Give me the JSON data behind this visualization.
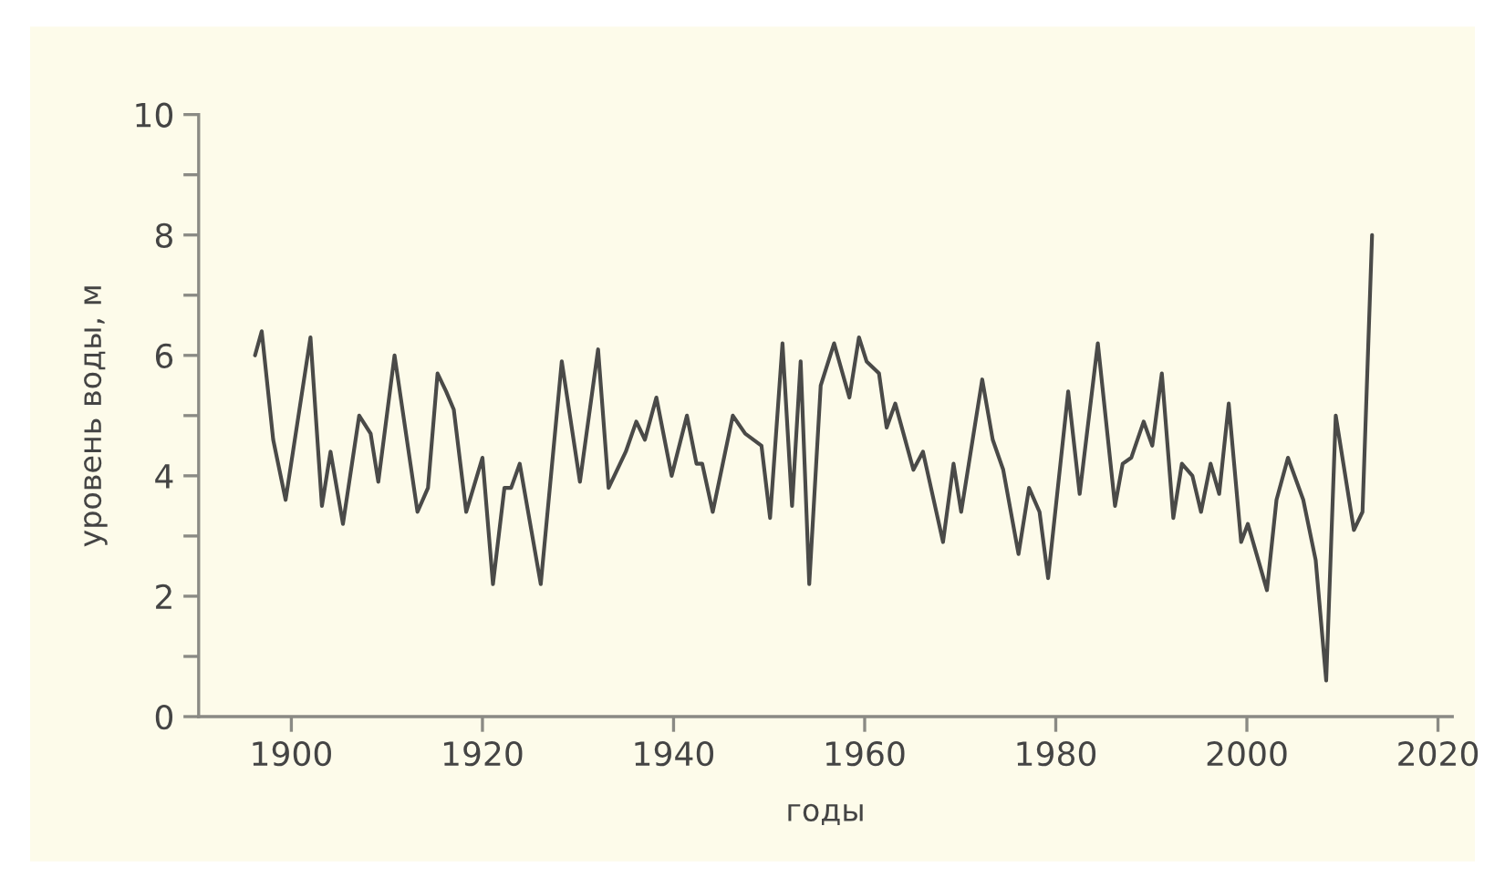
{
  "chart_data": {
    "type": "line",
    "xlabel": "годы",
    "ylabel": "уровень воды, м",
    "xlim": [
      1890.3,
      2021.5
    ],
    "xticks": [
      1900,
      1920,
      1940,
      1960,
      1980,
      2000,
      2020
    ],
    "ylim": [
      0,
      10
    ],
    "yticks": [
      0,
      {
        "value": 1,
        "label": null
      },
      2,
      {
        "value": 3,
        "label": null
      },
      4,
      {
        "value": 5,
        "label": null
      },
      6,
      {
        "value": 7,
        "label": null
      },
      8,
      {
        "value": 9,
        "label": null
      },
      10
    ],
    "grid": false,
    "legend": false,
    "marker": "none",
    "line_style": "solid",
    "series": [
      {
        "color": "#4a4a48",
        "x": [
          1896.2,
          1896.9,
          1898.1,
          1899.4,
          1902.0,
          1903.2,
          1904.1,
          1905.4,
          1907.1,
          1908.3,
          1909.1,
          1910.8,
          1913.2,
          1914.3,
          1915.3,
          1916.2,
          1917.0,
          1918.3,
          1920.0,
          1921.1,
          1922.3,
          1923.0,
          1923.9,
          1926.1,
          1928.3,
          1930.2,
          1932.1,
          1933.2,
          1935.0,
          1936.1,
          1937.0,
          1938.2,
          1939.8,
          1941.4,
          1942.4,
          1943.0,
          1944.1,
          1946.2,
          1947.5,
          1949.2,
          1950.1,
          1951.4,
          1952.4,
          1953.3,
          1954.2,
          1955.4,
          1956.8,
          1958.4,
          1959.4,
          1960.2,
          1961.5,
          1962.3,
          1963.2,
          1965.1,
          1966.1,
          1968.2,
          1969.3,
          1970.1,
          1972.3,
          1973.4,
          1974.5,
          1976.1,
          1977.2,
          1978.3,
          1979.2,
          1981.3,
          1982.5,
          1984.4,
          1986.2,
          1987.0,
          1987.9,
          1989.2,
          1990.1,
          1991.1,
          1992.3,
          1993.2,
          1994.3,
          1995.2,
          1996.2,
          1997.1,
          1998.1,
          1999.4,
          2000.1,
          2002.1,
          2003.1,
          2004.3,
          2005.9,
          2007.2,
          2008.3,
          2009.3,
          2011.2,
          2012.1,
          2013.1
        ],
        "values": [
          6.0,
          6.4,
          4.6,
          3.6,
          6.3,
          3.5,
          4.4,
          3.2,
          5.0,
          4.7,
          3.9,
          6.0,
          3.4,
          3.8,
          5.7,
          5.4,
          5.1,
          3.4,
          4.3,
          2.2,
          3.8,
          3.8,
          4.2,
          2.2,
          5.9,
          3.9,
          6.1,
          3.8,
          4.4,
          4.9,
          4.6,
          5.3,
          4.0,
          5.0,
          4.2,
          4.2,
          3.4,
          5.0,
          4.7,
          4.5,
          3.3,
          6.2,
          3.5,
          5.9,
          2.2,
          5.5,
          6.2,
          5.3,
          6.3,
          5.9,
          5.7,
          4.8,
          5.2,
          4.1,
          4.4,
          2.9,
          4.2,
          3.4,
          5.6,
          4.6,
          4.1,
          2.7,
          3.8,
          3.4,
          2.3,
          5.4,
          3.7,
          6.2,
          3.5,
          4.2,
          4.3,
          4.9,
          4.5,
          5.7,
          3.3,
          4.2,
          4.0,
          3.4,
          4.2,
          3.7,
          5.2,
          2.9,
          3.2,
          2.1,
          3.6,
          4.3,
          3.6,
          2.6,
          0.6,
          5.0,
          3.1,
          3.4,
          8.0
        ]
      }
    ]
  }
}
